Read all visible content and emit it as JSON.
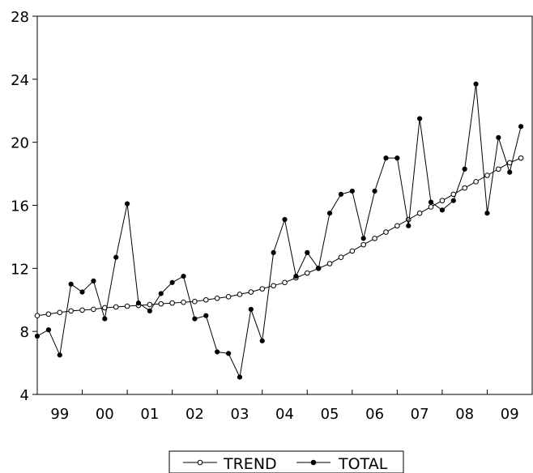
{
  "chart_data": {
    "type": "line",
    "ylim": [
      4,
      28
    ],
    "yticks": [
      4,
      8,
      12,
      16,
      20,
      24,
      28
    ],
    "xlim": [
      1999.0,
      2010.0
    ],
    "x_tick_labels": [
      "99",
      "00",
      "01",
      "02",
      "03",
      "04",
      "05",
      "06",
      "07",
      "08",
      "09"
    ],
    "grid": false,
    "legend_position": "bottom-center",
    "x": [
      1999.0,
      1999.25,
      1999.5,
      1999.75,
      2000.0,
      2000.25,
      2000.5,
      2000.75,
      2001.0,
      2001.25,
      2001.5,
      2001.75,
      2002.0,
      2002.25,
      2002.5,
      2002.75,
      2003.0,
      2003.25,
      2003.5,
      2003.75,
      2004.0,
      2004.25,
      2004.5,
      2004.75,
      2005.0,
      2005.25,
      2005.5,
      2005.75,
      2006.0,
      2006.25,
      2006.5,
      2006.75,
      2007.0,
      2007.25,
      2007.5,
      2007.75,
      2008.0,
      2008.25,
      2008.5,
      2008.75,
      2009.0,
      2009.25,
      2009.5,
      2009.75
    ],
    "series": [
      {
        "name": "TREND",
        "marker": "open-circle",
        "color": "#000000",
        "values": [
          9.0,
          9.1,
          9.2,
          9.3,
          9.35,
          9.4,
          9.5,
          9.55,
          9.6,
          9.65,
          9.7,
          9.75,
          9.8,
          9.85,
          9.9,
          10.0,
          10.1,
          10.2,
          10.35,
          10.5,
          10.7,
          10.9,
          11.1,
          11.4,
          11.7,
          12.0,
          12.3,
          12.7,
          13.1,
          13.5,
          13.9,
          14.3,
          14.7,
          15.1,
          15.5,
          15.9,
          16.3,
          16.7,
          17.1,
          17.5,
          17.9,
          18.3,
          18.7,
          19.0
        ]
      },
      {
        "name": "TOTAL",
        "marker": "filled-circle",
        "color": "#000000",
        "values": [
          7.7,
          8.1,
          6.5,
          11.0,
          10.5,
          11.2,
          8.8,
          12.7,
          16.1,
          9.8,
          9.3,
          10.4,
          11.1,
          11.5,
          8.8,
          9.0,
          6.7,
          6.6,
          5.1,
          9.4,
          7.4,
          13.0,
          15.1,
          11.5,
          13.0,
          12.0,
          15.5,
          16.7,
          16.9,
          13.9,
          16.9,
          19.0,
          19.0,
          14.7,
          21.5,
          16.2,
          15.7,
          16.3,
          18.3,
          23.7,
          15.5,
          20.3,
          18.1,
          21.0
        ]
      }
    ],
    "legend": [
      "TREND",
      "TOTAL"
    ]
  }
}
